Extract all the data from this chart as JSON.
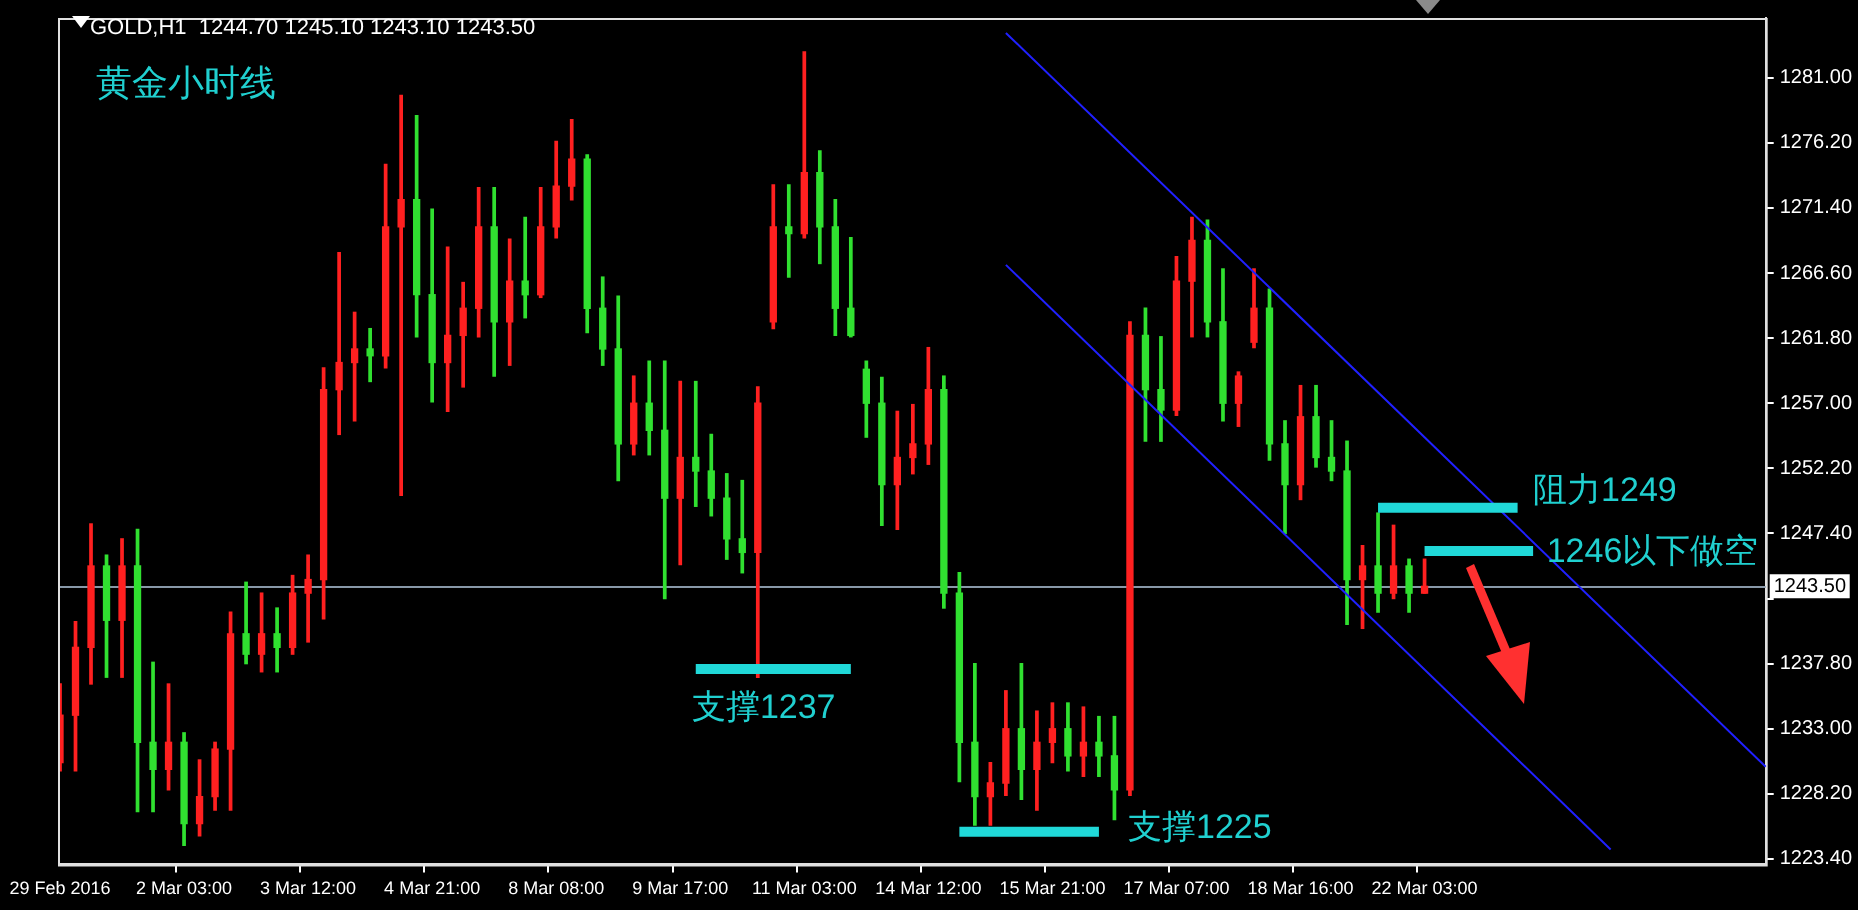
{
  "chart_data": {
    "type": "candlestick",
    "title": "GOLD,H1  1244.70 1245.10 1243.10 1243.50",
    "categories": [
      "29 Feb 2016",
      null,
      null,
      null,
      null,
      null,
      null,
      null,
      "2 Mar 03:00",
      null,
      null,
      null,
      null,
      null,
      null,
      null,
      "3 Mar 12:00",
      null,
      null,
      null,
      null,
      null,
      null,
      null,
      "4 Mar 21:00",
      null,
      null,
      null,
      null,
      null,
      null,
      null,
      "8 Mar 08:00",
      null,
      null,
      null,
      null,
      null,
      null,
      null,
      "9 Mar 17:00",
      null,
      null,
      null,
      null,
      null,
      null,
      null,
      "11 Mar 03:00",
      null,
      null,
      null,
      null,
      null,
      null,
      null,
      "14 Mar 12:00",
      null,
      null,
      null,
      null,
      null,
      null,
      null,
      "15 Mar 21:00",
      null,
      null,
      null,
      null,
      null,
      null,
      null,
      "17 Mar 07:00",
      null,
      null,
      null,
      null,
      null,
      null,
      null,
      "18 Mar 16:00",
      null,
      null,
      null,
      null,
      null,
      null,
      null,
      "22 Mar 03:00",
      null,
      null,
      null,
      null,
      null,
      null,
      null,
      null,
      null,
      null,
      null,
      null,
      null,
      null,
      null,
      null,
      null,
      null,
      null,
      null,
      null,
      null
    ],
    "ohlc": [
      [
        1230.5,
        1236.3,
        1229.9,
        1234
      ],
      [
        1234,
        1240.9,
        1229.9,
        1239
      ],
      [
        1239,
        1248.1,
        1236.3,
        1245
      ],
      [
        1245,
        1245.8,
        1236.8,
        1241
      ],
      [
        1241,
        1247,
        1236.8,
        1245
      ],
      [
        1245,
        1247.7,
        1226.9,
        1232
      ],
      [
        1232,
        1237.9,
        1226.9,
        1230
      ],
      [
        1230,
        1236.3,
        1228.5,
        1232
      ],
      [
        1232,
        1232.7,
        1224.4,
        1226
      ],
      [
        1226,
        1230.7,
        1225.1,
        1228
      ],
      [
        1228,
        1232,
        1227,
        1231.5
      ],
      [
        1231.5,
        1241.6,
        1227,
        1240
      ],
      [
        1240,
        1243.8,
        1237.8,
        1238.5
      ],
      [
        1238.5,
        1243,
        1237.2,
        1240
      ],
      [
        1240,
        1241.9,
        1237.2,
        1239
      ],
      [
        1239,
        1244.3,
        1238.5,
        1243
      ],
      [
        1243,
        1245.8,
        1239.4,
        1244
      ],
      [
        1244,
        1259.6,
        1241.1,
        1258
      ],
      [
        1258,
        1268.1,
        1254.7,
        1260
      ],
      [
        1260,
        1263.7,
        1255.7,
        1261
      ],
      [
        1261,
        1262.5,
        1258.6,
        1260.5
      ],
      [
        1260.5,
        1274.6,
        1259.6,
        1270
      ],
      [
        1270,
        1279.7,
        1250.2,
        1272
      ],
      [
        1272,
        1278.2,
        1261.9,
        1265
      ],
      [
        1265,
        1271.3,
        1257.1,
        1260
      ],
      [
        1260,
        1268.5,
        1256.4,
        1262
      ],
      [
        1262,
        1265.9,
        1258.2,
        1264
      ],
      [
        1264,
        1272.9,
        1261.9,
        1270
      ],
      [
        1270,
        1272.9,
        1259,
        1263
      ],
      [
        1263,
        1269.1,
        1259.8,
        1266
      ],
      [
        1266,
        1270.7,
        1263.3,
        1265
      ],
      [
        1265,
        1272.9,
        1264.8,
        1270
      ],
      [
        1270,
        1276.3,
        1269.2,
        1273
      ],
      [
        1273,
        1277.9,
        1272,
        1275
      ],
      [
        1275,
        1275.3,
        1262.2,
        1264
      ],
      [
        1264,
        1266.3,
        1259.8,
        1261
      ],
      [
        1261,
        1264.9,
        1251.3,
        1254
      ],
      [
        1254,
        1259,
        1253.2,
        1257
      ],
      [
        1257,
        1260.1,
        1253.2,
        1255
      ],
      [
        1255,
        1260.1,
        1242.6,
        1250
      ],
      [
        1250,
        1258.6,
        1245.1,
        1253
      ],
      [
        1253,
        1258.6,
        1249.4,
        1252
      ],
      [
        1252,
        1254.7,
        1248.7,
        1250
      ],
      [
        1250,
        1251.8,
        1245.5,
        1247
      ],
      [
        1247,
        1251.3,
        1244.5,
        1246
      ],
      [
        1246,
        1258.2,
        1236.8,
        1257
      ],
      [
        1263,
        1273.1,
        1262.5,
        1270
      ],
      [
        1270,
        1273.1,
        1266.3,
        1269.5
      ],
      [
        1269.5,
        1282.9,
        1269.2,
        1274
      ],
      [
        1274,
        1275.6,
        1267.3,
        1270
      ],
      [
        1270,
        1272,
        1262,
        1264
      ],
      [
        1264,
        1269.2,
        1261.9,
        1262
      ],
      [
        1259.5,
        1260.1,
        1254.5,
        1257
      ],
      [
        1257,
        1258.9,
        1248,
        1251
      ],
      [
        1251,
        1256.4,
        1247.7,
        1253
      ],
      [
        1253,
        1256.9,
        1251.8,
        1254
      ],
      [
        1254,
        1261.1,
        1252.5,
        1258
      ],
      [
        1258,
        1259,
        1241.9,
        1243
      ],
      [
        1243,
        1244.5,
        1229.1,
        1232
      ],
      [
        1232,
        1237.8,
        1225.9,
        1228
      ],
      [
        1228,
        1230.5,
        1225.9,
        1229
      ],
      [
        1229,
        1235.8,
        1228.1,
        1233
      ],
      [
        1233,
        1237.8,
        1227.8,
        1230
      ],
      [
        1230,
        1234.3,
        1227,
        1232
      ],
      [
        1232,
        1234.9,
        1230.5,
        1233
      ],
      [
        1233,
        1234.9,
        1229.9,
        1231
      ],
      [
        1231,
        1234.6,
        1229.5,
        1232
      ],
      [
        1232,
        1233.9,
        1229.5,
        1231
      ],
      [
        1231,
        1233.9,
        1226.3,
        1228.5
      ],
      [
        1228.5,
        1263,
        1228.1,
        1262
      ],
      [
        1262,
        1264,
        1254.2,
        1258
      ],
      [
        1258,
        1261.9,
        1254.2,
        1256.5
      ],
      [
        1256.5,
        1267.8,
        1256.1,
        1266
      ],
      [
        1266,
        1270.7,
        1261.9,
        1269
      ],
      [
        1269,
        1270.5,
        1261.9,
        1263
      ],
      [
        1263,
        1266.9,
        1255.7,
        1257
      ],
      [
        1257,
        1259.3,
        1255.3,
        1259
      ],
      [
        1261.5,
        1266.9,
        1261.1,
        1264
      ],
      [
        1264,
        1265.4,
        1252.8,
        1254
      ],
      [
        1254,
        1255.7,
        1247.4,
        1251
      ],
      [
        1251,
        1258.3,
        1249.9,
        1256
      ],
      [
        1256,
        1258.3,
        1252.3,
        1253
      ],
      [
        1253,
        1255.7,
        1251.3,
        1252
      ],
      [
        1252,
        1254.2,
        1240.7,
        1244
      ],
      [
        1244,
        1246.5,
        1240.4,
        1245
      ],
      [
        1245,
        1248.9,
        1241.6,
        1243
      ],
      [
        1243,
        1248,
        1242.6,
        1245
      ],
      [
        1245,
        1245.5,
        1241.6,
        1243
      ],
      [
        1243,
        1245.5,
        1243,
        1243.5
      ],
      null,
      null,
      null,
      null,
      null,
      null,
      null,
      null,
      null,
      null,
      null,
      null,
      null,
      null,
      null,
      null,
      null,
      null,
      null,
      null,
      null,
      null
    ],
    "colors": [
      "#ff2020",
      "#ff2020",
      "#ff2020",
      "#30e030",
      "#ff2020",
      "#30e030",
      "#30e030",
      "#ff2020",
      "#30e030",
      "#ff2020",
      "#ff2020",
      "#ff2020",
      "#30e030",
      "#ff2020",
      "#30e030",
      "#ff2020",
      "#ff2020",
      "#ff2020",
      "#ff2020",
      "#ff2020",
      "#30e030",
      "#ff2020",
      "#ff2020",
      "#30e030",
      "#30e030",
      "#ff2020",
      "#ff2020",
      "#ff2020",
      "#30e030",
      "#ff2020",
      "#30e030",
      "#ff2020",
      "#ff2020",
      "#ff2020",
      "#30e030",
      "#30e030",
      "#30e030",
      "#ff2020",
      "#30e030",
      "#30e030",
      "#ff2020",
      "#30e030",
      "#30e030",
      "#30e030",
      "#30e030",
      "#ff2020",
      "#ff2020",
      "#30e030",
      "#ff2020",
      "#30e030",
      "#30e030",
      "#30e030",
      "#30e030",
      "#30e030",
      "#ff2020",
      "#ff2020",
      "#ff2020",
      "#30e030",
      "#30e030",
      "#30e030",
      "#ff2020",
      "#ff2020",
      "#30e030",
      "#ff2020",
      "#ff2020",
      "#30e030",
      "#ff2020",
      "#30e030",
      "#30e030",
      "#ff2020",
      "#30e030",
      "#30e030",
      "#ff2020",
      "#ff2020",
      "#30e030",
      "#30e030",
      "#ff2020",
      "#ff2020",
      "#30e030",
      "#30e030",
      "#ff2020",
      "#30e030",
      "#30e030",
      "#30e030",
      "#ff2020",
      "#30e030",
      "#ff2020",
      "#30e030",
      "#ff2020",
      null,
      null,
      null,
      null,
      null,
      null,
      null,
      null,
      null,
      null,
      null,
      null,
      null,
      null,
      null,
      null,
      null,
      null,
      null,
      null,
      null,
      null
    ],
    "series": [
      {
        "type": "line",
        "color": "#20d8d8",
        "values": [
          null,
          null,
          null,
          null,
          null,
          null,
          null,
          null,
          null,
          null,
          null,
          null,
          null,
          null,
          null,
          null,
          null,
          null,
          null,
          null,
          null,
          null,
          null,
          null,
          null,
          null,
          null,
          null,
          null,
          null,
          null,
          null,
          null,
          null,
          null,
          null,
          null,
          null,
          null,
          null,
          null,
          1237.4,
          1237.4,
          1237.4,
          1237.4,
          1237.4,
          1237.4,
          1237.4,
          1237.4,
          1237.4,
          1237.4,
          1237.4,
          null,
          null,
          null,
          null,
          null,
          null,
          null,
          null,
          null,
          null,
          null,
          null,
          null,
          null,
          null,
          null,
          null,
          null,
          null,
          null,
          null,
          null,
          null,
          null,
          null,
          null,
          null,
          null,
          null,
          null,
          null,
          null,
          null,
          null,
          null,
          null,
          null,
          null,
          null,
          null,
          null,
          null,
          null,
          null,
          null,
          null,
          null,
          null,
          null,
          null,
          null,
          null,
          null,
          null,
          null,
          null,
          null,
          null,
          null
        ]
      },
      {
        "type": "line",
        "color": "#20d8d8",
        "values": [
          null,
          null,
          null,
          null,
          null,
          null,
          null,
          null,
          null,
          null,
          null,
          null,
          null,
          null,
          null,
          null,
          null,
          null,
          null,
          null,
          null,
          null,
          null,
          null,
          null,
          null,
          null,
          null,
          null,
          null,
          null,
          null,
          null,
          null,
          null,
          null,
          null,
          null,
          null,
          null,
          null,
          null,
          null,
          null,
          null,
          null,
          null,
          null,
          null,
          null,
          null,
          null,
          null,
          null,
          null,
          null,
          null,
          null,
          1225.4,
          1225.4,
          1225.4,
          1225.4,
          1225.4,
          1225.4,
          1225.4,
          1225.4,
          1225.4,
          1225.4,
          null,
          null,
          null,
          null,
          null,
          null,
          null,
          null,
          null,
          null,
          null,
          null,
          null,
          null,
          null,
          null,
          null,
          null,
          null,
          null,
          null,
          null,
          null,
          null,
          null,
          null,
          null,
          null,
          null,
          null,
          null,
          null,
          null,
          null,
          null,
          null,
          null,
          null,
          null,
          null,
          null,
          null,
          null
        ]
      },
      {
        "type": "line",
        "color": "#20d8d8",
        "values": [
          null,
          null,
          null,
          null,
          null,
          null,
          null,
          null,
          null,
          null,
          null,
          null,
          null,
          null,
          null,
          null,
          null,
          null,
          null,
          null,
          null,
          null,
          null,
          null,
          null,
          null,
          null,
          null,
          null,
          null,
          null,
          null,
          null,
          null,
          null,
          null,
          null,
          null,
          null,
          null,
          null,
          null,
          null,
          null,
          null,
          null,
          null,
          null,
          null,
          null,
          null,
          null,
          null,
          null,
          null,
          null,
          null,
          null,
          null,
          null,
          null,
          null,
          null,
          null,
          null,
          null,
          null,
          null,
          null,
          null,
          null,
          null,
          null,
          null,
          null,
          null,
          null,
          null,
          null,
          null,
          null,
          null,
          null,
          null,
          null,
          1249.3,
          1249.3,
          1249.3,
          1249.3,
          1249.3,
          1249.3,
          1249.3,
          1249.3,
          1249.3,
          1249.3,
          null,
          null,
          null,
          null,
          null,
          null,
          null,
          null,
          null,
          null,
          null,
          null,
          null,
          null,
          null,
          null
        ]
      },
      {
        "type": "line",
        "color": "#20d8d8",
        "values": [
          null,
          null,
          null,
          null,
          null,
          null,
          null,
          null,
          null,
          null,
          null,
          null,
          null,
          null,
          null,
          null,
          null,
          null,
          null,
          null,
          null,
          null,
          null,
          null,
          null,
          null,
          null,
          null,
          null,
          null,
          null,
          null,
          null,
          null,
          null,
          null,
          null,
          null,
          null,
          null,
          null,
          null,
          null,
          null,
          null,
          null,
          null,
          null,
          null,
          null,
          null,
          null,
          null,
          null,
          null,
          null,
          null,
          null,
          null,
          null,
          null,
          null,
          null,
          null,
          null,
          null,
          null,
          null,
          null,
          null,
          null,
          null,
          null,
          null,
          null,
          null,
          null,
          null,
          null,
          null,
          null,
          null,
          null,
          null,
          null,
          null,
          null,
          null,
          1246.1,
          1246.1,
          1246.1,
          1246.1,
          1246.1,
          1246.1,
          1246.1,
          1246.1,
          null,
          null,
          null,
          null,
          null,
          null,
          null,
          null,
          null,
          null,
          null,
          null,
          null,
          null,
          null
        ]
      },
      {
        "type": "line",
        "color": "#2020ff",
        "values": [
          null,
          null,
          null,
          null,
          null,
          null,
          null,
          null,
          null,
          null,
          null,
          null,
          null,
          null,
          null,
          null,
          null,
          null,
          null,
          null,
          null,
          null,
          null,
          null,
          null,
          null,
          null,
          null,
          null,
          null,
          null,
          null,
          null,
          null,
          null,
          null,
          null,
          null,
          null,
          null,
          null,
          null,
          null,
          null,
          null,
          null,
          null,
          null,
          null,
          null,
          null,
          null,
          null,
          null,
          null,
          null,
          null,
          null,
          null,
          null,
          null,
          1284.3,
          null,
          null,
          null,
          null,
          null,
          null,
          null,
          null,
          null,
          null,
          null,
          null,
          null,
          null,
          null,
          null,
          null,
          null,
          null,
          null,
          null,
          null,
          null,
          null,
          null,
          null,
          null,
          null,
          null,
          null,
          null,
          null,
          null,
          null,
          null,
          null,
          null,
          null,
          null,
          null,
          null,
          null,
          null,
          null,
          null,
          null,
          null,
          null,
          1230.2
        ]
      },
      {
        "type": "line",
        "color": "#2020ff",
        "values": [
          null,
          null,
          null,
          null,
          null,
          null,
          null,
          null,
          null,
          null,
          null,
          null,
          null,
          null,
          null,
          null,
          null,
          null,
          null,
          null,
          null,
          null,
          null,
          null,
          null,
          null,
          null,
          null,
          null,
          null,
          null,
          null,
          null,
          null,
          null,
          null,
          null,
          null,
          null,
          null,
          null,
          null,
          null,
          null,
          null,
          null,
          null,
          null,
          null,
          null,
          null,
          null,
          null,
          null,
          null,
          null,
          null,
          null,
          null,
          null,
          null,
          1267.2,
          null,
          null,
          null,
          null,
          null,
          null,
          null,
          null,
          null,
          null,
          null,
          null,
          null,
          null,
          null,
          null,
          null,
          null,
          null,
          null,
          null,
          null,
          null,
          null,
          null,
          null,
          null,
          null,
          null,
          null,
          null,
          null,
          null,
          null,
          null,
          null,
          null,
          null,
          1224.1,
          null,
          null,
          null,
          null,
          null,
          null,
          null,
          null,
          null,
          null
        ]
      }
    ],
    "ylim": [
      1223.0,
      1285.4
    ],
    "yticks": [
      {
        "value": 1223.4,
        "label": "1223.40"
      },
      {
        "value": 1228.2,
        "label": "1228.20"
      },
      {
        "value": 1233,
        "label": "1233.00"
      },
      {
        "value": 1237.8,
        "label": "1237.80"
      },
      {
        "value": 1242.6,
        "label": null
      },
      {
        "value": 1247.4,
        "label": "1247.40"
      },
      {
        "value": 1252.2,
        "label": "1252.20"
      },
      {
        "value": 1257,
        "label": "1257.00"
      },
      {
        "value": 1261.8,
        "label": "1261.80"
      },
      {
        "value": 1266.6,
        "label": "1266.60"
      },
      {
        "value": 1271.4,
        "label": "1271.40"
      },
      {
        "value": 1276.2,
        "label": "1276.20"
      },
      {
        "value": 1281,
        "label": "1281.00"
      }
    ],
    "ref_lines": [
      {
        "axis": "y",
        "value": 1243.5,
        "label": "1243.50",
        "color": "#8898a8"
      }
    ],
    "annotations": [
      "黄金小时线",
      "支撑1237",
      "支撑1225",
      "阻力1249",
      "1246以下做空"
    ],
    "grid": false,
    "legend": false
  }
}
